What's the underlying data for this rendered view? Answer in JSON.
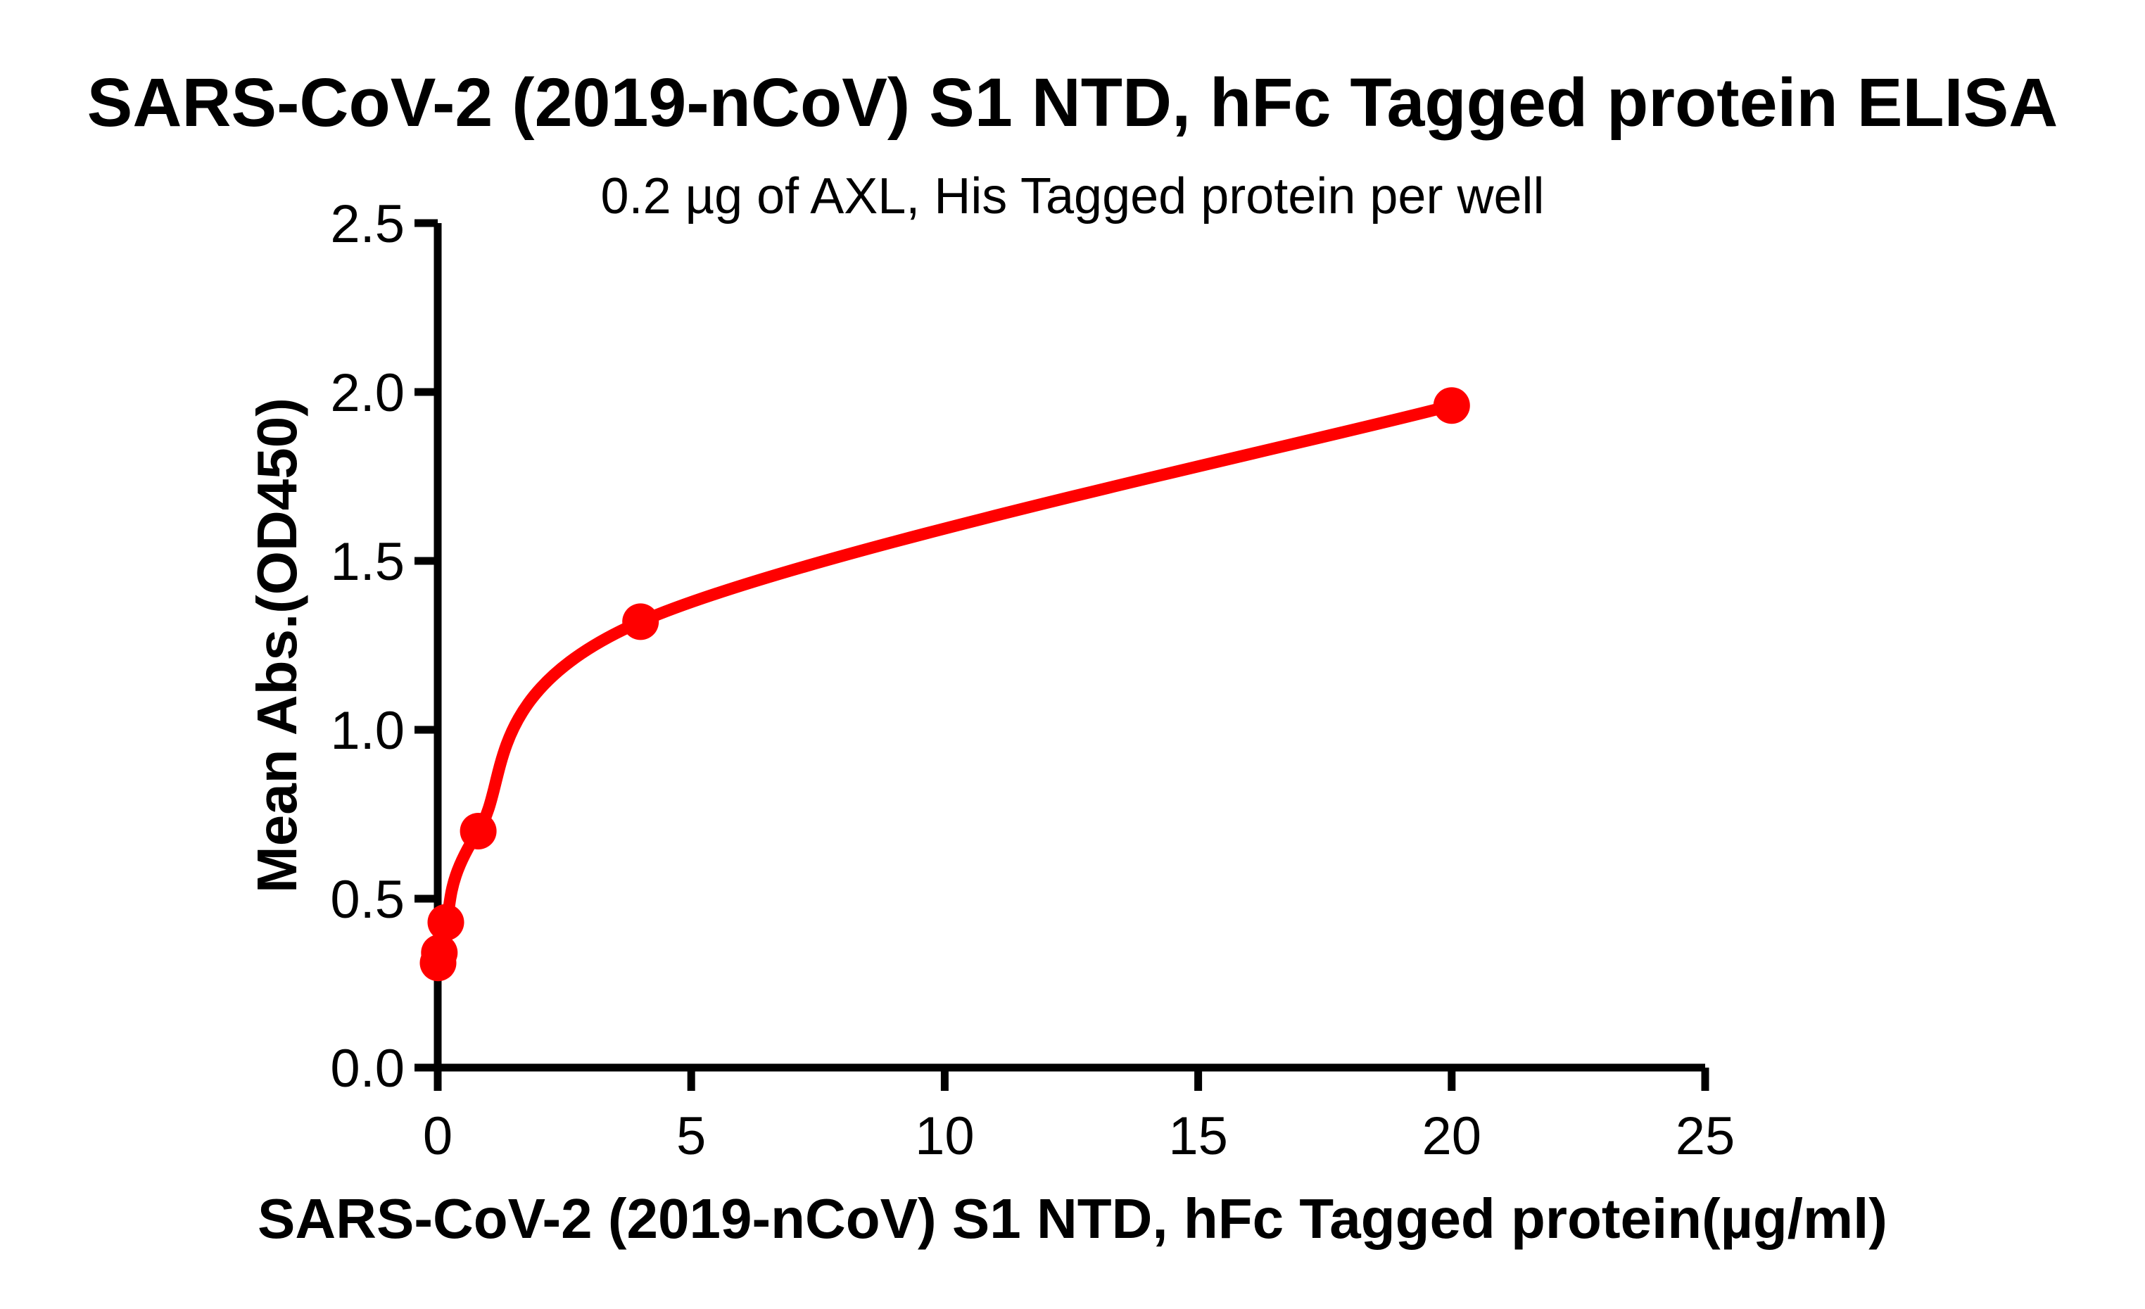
{
  "chart_data": {
    "type": "scatter",
    "title": "SARS-CoV-2 (2019-nCoV) S1 NTD, hFc Tagged protein ELISA",
    "subtitle": "0.2 µg of AXL, His Tagged protein per well",
    "xlabel": "SARS-CoV-2 (2019-nCoV) S1 NTD, hFc Tagged protein(µg/ml)",
    "ylabel": "Mean Abs.(OD450)",
    "x": [
      0.0064,
      0.032,
      0.16,
      0.8,
      4,
      20
    ],
    "y": [
      0.31,
      0.34,
      0.43,
      0.7,
      1.32,
      1.96
    ],
    "xlim": [
      0,
      25
    ],
    "ylim": [
      0,
      2.5
    ],
    "xticks": [
      0,
      5,
      10,
      15,
      20,
      25
    ],
    "xticklabels": [
      "0",
      "5",
      "10",
      "15",
      "20",
      "25"
    ],
    "yticks": [
      0,
      0.5,
      1,
      1.5,
      2,
      2.5
    ],
    "yticklabels": [
      "0.0",
      "0.5",
      "1.0",
      "1.5",
      "2.0",
      "2.5"
    ],
    "line_color": "#ff0000",
    "axis_color": "#000000",
    "marker": "circle",
    "grid": false,
    "legend": "none",
    "curve_style": "smooth-fit-through-points"
  }
}
